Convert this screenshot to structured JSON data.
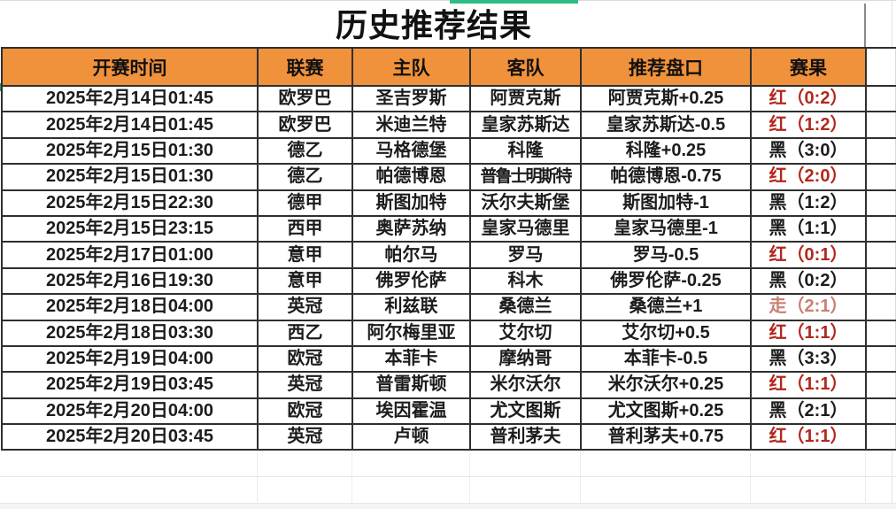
{
  "title": "历史推荐结果",
  "chrome": {
    "indicator_color": "#2ebd85"
  },
  "table": {
    "header_bg": "#f0913c",
    "columns": [
      {
        "key": "time",
        "label": "开赛时间"
      },
      {
        "key": "league",
        "label": "联赛"
      },
      {
        "key": "home",
        "label": "主队"
      },
      {
        "key": "away",
        "label": "客队"
      },
      {
        "key": "handicap",
        "label": "推荐盘口"
      },
      {
        "key": "result",
        "label": "赛果"
      }
    ],
    "result_colors": {
      "红": "#b3271d",
      "黑": "#1c1c1c",
      "走": "#c97f74"
    },
    "rows": [
      {
        "time": "2025年2月14日01:45",
        "league": "欧罗巴",
        "home": "圣吉罗斯",
        "away": "阿贾克斯",
        "handicap": "阿贾克斯+0.25",
        "outcome": "红",
        "score": "0:2",
        "result": "红（0:2）"
      },
      {
        "time": "2025年2月14日01:45",
        "league": "欧罗巴",
        "home": "米迪兰特",
        "away": "皇家苏斯达",
        "handicap": "皇家苏斯达-0.5",
        "outcome": "红",
        "score": "1:2",
        "result": "红（1:2）"
      },
      {
        "time": "2025年2月15日01:30",
        "league": "德乙",
        "home": "马格德堡",
        "away": "科隆",
        "handicap": "科隆+0.25",
        "outcome": "黑",
        "score": "3:0",
        "result": "黑（3:0）"
      },
      {
        "time": "2025年2月15日01:30",
        "league": "德乙",
        "home": "帕德博恩",
        "away": "普鲁士明斯特",
        "handicap": "帕德博恩-0.75",
        "outcome": "红",
        "score": "2:0",
        "result": "红（2:0）"
      },
      {
        "time": "2025年2月15日22:30",
        "league": "德甲",
        "home": "斯图加特",
        "away": "沃尔夫斯堡",
        "handicap": "斯图加特-1",
        "outcome": "黑",
        "score": "1:2",
        "result": "黑（1:2）"
      },
      {
        "time": "2025年2月15日23:15",
        "league": "西甲",
        "home": "奥萨苏纳",
        "away": "皇家马德里",
        "handicap": "皇家马德里-1",
        "outcome": "黑",
        "score": "1:1",
        "result": "黑（1:1）"
      },
      {
        "time": "2025年2月17日01:00",
        "league": "意甲",
        "home": "帕尔马",
        "away": "罗马",
        "handicap": "罗马-0.5",
        "outcome": "红",
        "score": "0:1",
        "result": "红（0:1）"
      },
      {
        "time": "2025年2月16日19:30",
        "league": "意甲",
        "home": "佛罗伦萨",
        "away": "科木",
        "handicap": "佛罗伦萨-0.25",
        "outcome": "黑",
        "score": "0:2",
        "result": "黑（0:2）"
      },
      {
        "time": "2025年2月18日04:00",
        "league": "英冠",
        "home": "利兹联",
        "away": "桑德兰",
        "handicap": "桑德兰+1",
        "outcome": "走",
        "score": "2:1",
        "result": "走（2:1）"
      },
      {
        "time": "2025年2月18日03:30",
        "league": "西乙",
        "home": "阿尔梅里亚",
        "away": "艾尔切",
        "handicap": "艾尔切+0.5",
        "outcome": "红",
        "score": "1:1",
        "result": "红（1:1）"
      },
      {
        "time": "2025年2月19日04:00",
        "league": "欧冠",
        "home": "本菲卡",
        "away": "摩纳哥",
        "handicap": "本菲卡-0.5",
        "outcome": "黑",
        "score": "3:3",
        "result": "黑（3:3）"
      },
      {
        "time": "2025年2月19日03:45",
        "league": "英冠",
        "home": "普雷斯顿",
        "away": "米尔沃尔",
        "handicap": "米尔沃尔+0.25",
        "outcome": "红",
        "score": "1:1",
        "result": "红（1:1）"
      },
      {
        "time": "2025年2月20日04:00",
        "league": "欧冠",
        "home": "埃因霍温",
        "away": "尤文图斯",
        "handicap": "尤文图斯+0.25",
        "outcome": "黑",
        "score": "2:1",
        "result": "黑（2:1）"
      },
      {
        "time": "2025年2月20日03:45",
        "league": "英冠",
        "home": "卢顿",
        "away": "普利茅夫",
        "handicap": "普利茅夫+0.75",
        "outcome": "红",
        "score": "1:1",
        "result": "红（1:1）"
      }
    ]
  }
}
